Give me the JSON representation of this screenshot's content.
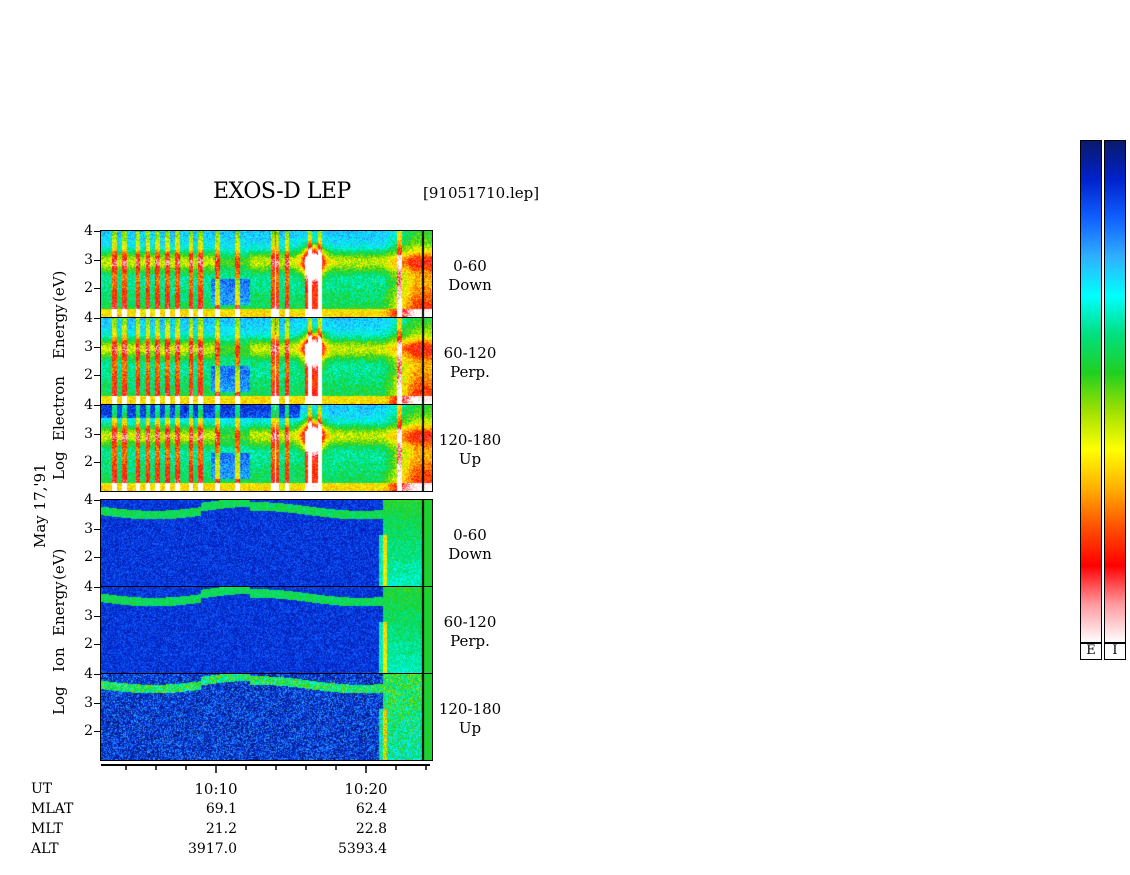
{
  "chart_data": {
    "type": "heatmap",
    "title": "EXOS-D LEP",
    "file": "[91051710.lep]",
    "date_label": "May 17,'91",
    "electron_axis": [
      "Log",
      "Electron",
      "Energy",
      "(eV)"
    ],
    "ion_axis": [
      "Log",
      "Ion",
      "Energy",
      "(eV)"
    ],
    "y_ticks": [
      "4",
      "3",
      "2"
    ],
    "ylim": [
      1,
      4
    ],
    "yscale": "log10",
    "species": [
      {
        "name": "Electron",
        "panels": [
          {
            "line1": "0-60",
            "line2": "Down"
          },
          {
            "line1": "60-120",
            "line2": "Perp."
          },
          {
            "line1": "120-180",
            "line2": "Up"
          }
        ]
      },
      {
        "name": "Ion",
        "panels": [
          {
            "line1": "0-60",
            "line2": "Down"
          },
          {
            "line1": "60-120",
            "line2": "Perp."
          },
          {
            "line1": "120-180",
            "line2": "Up"
          }
        ]
      }
    ],
    "x_ticks": [
      "10:10",
      "10:20"
    ],
    "rows": [
      {
        "label": "UT",
        "values": [
          "10:10",
          "10:20"
        ]
      },
      {
        "label": "MLAT",
        "values": [
          "69.1",
          "62.4"
        ]
      },
      {
        "label": "MLT",
        "values": [
          "21.2",
          "22.8"
        ]
      },
      {
        "label": "ALT",
        "values": [
          "3917.0",
          "5393.4"
        ]
      }
    ],
    "colorbars": [
      {
        "label": "E"
      },
      {
        "label": "I"
      }
    ],
    "colormap": [
      "#0a1a6e",
      "#0022cc",
      "#1060ff",
      "#30b0ff",
      "#00ffff",
      "#00e080",
      "#20d020",
      "#a0e000",
      "#ffff00",
      "#ffb000",
      "#ff5000",
      "#ff0000",
      "#ff9aa0",
      "#ffffff"
    ]
  }
}
